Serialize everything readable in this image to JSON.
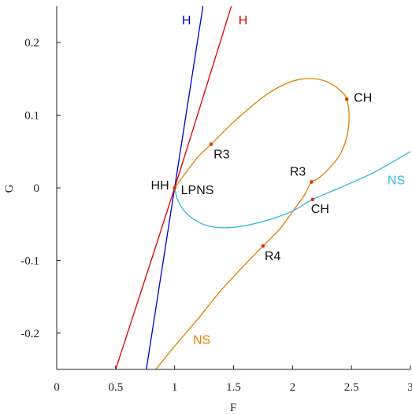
{
  "chart_data": {
    "type": "line",
    "title": "",
    "xlabel": "F",
    "ylabel": "G",
    "xlim": [
      0,
      3
    ],
    "ylim": [
      -0.25,
      0.25
    ],
    "grid": false,
    "x_ticks": [
      0,
      0.5,
      1,
      1.5,
      2,
      2.5,
      3
    ],
    "x_tick_labels": [
      "0",
      "0.5",
      "1",
      "1.5",
      "2",
      "2.5",
      "3"
    ],
    "y_ticks": [
      -0.2,
      -0.1,
      0,
      0.1,
      0.2
    ],
    "y_tick_labels": [
      "-0.2",
      "-0.1",
      "0",
      "0.1",
      "0.2"
    ],
    "colors": {
      "blue": "#0000cc",
      "red": "#dd0000",
      "orange": "#e08000",
      "cyan": "#33b5e0"
    },
    "series": [
      {
        "name": "H",
        "color": "#0000cc",
        "points": [
          [
            0.76,
            -0.25
          ],
          [
            1.0,
            0.0
          ],
          [
            1.25,
            0.26
          ]
        ]
      },
      {
        "name": "H",
        "color": "#dd0000",
        "points": [
          [
            0.5,
            -0.25
          ],
          [
            1.0,
            0.0
          ],
          [
            1.5,
            0.26
          ]
        ]
      },
      {
        "name": "NS",
        "color": "#e08000",
        "points": [
          [
            1.0,
            0.0
          ],
          [
            1.1,
            0.022
          ],
          [
            1.2,
            0.043
          ],
          [
            1.31,
            0.06
          ],
          [
            1.45,
            0.083
          ],
          [
            1.6,
            0.105
          ],
          [
            1.75,
            0.125
          ],
          [
            1.9,
            0.14
          ],
          [
            2.05,
            0.149
          ],
          [
            2.2,
            0.15
          ],
          [
            2.32,
            0.144
          ],
          [
            2.42,
            0.132
          ],
          [
            2.46,
            0.122
          ],
          [
            2.48,
            0.1
          ],
          [
            2.46,
            0.07
          ],
          [
            2.4,
            0.045
          ],
          [
            2.3,
            0.025
          ],
          [
            2.21,
            0.012
          ],
          [
            2.16,
            0.008
          ],
          [
            2.1,
            -0.01
          ],
          [
            2.0,
            -0.033
          ],
          [
            1.9,
            -0.055
          ],
          [
            1.8,
            -0.072
          ],
          [
            1.75,
            -0.08
          ],
          [
            1.6,
            -0.105
          ],
          [
            1.4,
            -0.14
          ],
          [
            1.2,
            -0.18
          ],
          [
            1.0,
            -0.218
          ],
          [
            0.84,
            -0.25
          ]
        ]
      },
      {
        "name": "NS",
        "color": "#33b5e0",
        "points": [
          [
            1.0,
            0.0
          ],
          [
            1.03,
            -0.018
          ],
          [
            1.1,
            -0.035
          ],
          [
            1.2,
            -0.047
          ],
          [
            1.3,
            -0.053
          ],
          [
            1.44,
            -0.055
          ],
          [
            1.6,
            -0.052
          ],
          [
            1.8,
            -0.044
          ],
          [
            2.0,
            -0.032
          ],
          [
            2.17,
            -0.016
          ],
          [
            2.4,
            0.0
          ],
          [
            2.7,
            0.022
          ],
          [
            3.0,
            0.05
          ]
        ]
      }
    ],
    "points": [
      {
        "label": "HH",
        "x": 1.0,
        "y": 0.0,
        "color": "#dd3300"
      },
      {
        "label": "LPNS",
        "x": 1.0,
        "y": 0.0,
        "color": "#dd3300"
      },
      {
        "label": "R3",
        "x": 1.31,
        "y": 0.06,
        "color": "#dd3300"
      },
      {
        "label": "CH",
        "x": 2.46,
        "y": 0.122,
        "color": "#dd3300"
      },
      {
        "label": "R3",
        "x": 2.16,
        "y": 0.008,
        "color": "#dd3300"
      },
      {
        "label": "CH",
        "x": 2.17,
        "y": -0.016,
        "color": "#cc3333"
      },
      {
        "label": "R4",
        "x": 1.75,
        "y": -0.08,
        "color": "#dd3300"
      }
    ],
    "curve_labels": [
      {
        "text": "H",
        "x": 1.1,
        "y": 0.225,
        "color": "#0000cc"
      },
      {
        "text": "H",
        "x": 1.58,
        "y": 0.225,
        "color": "#dd0000"
      },
      {
        "text": "NS",
        "x": 2.88,
        "y": 0.005,
        "color": "#33b5e0"
      },
      {
        "text": "NS",
        "x": 1.23,
        "y": -0.215,
        "color": "#e08000"
      }
    ]
  }
}
